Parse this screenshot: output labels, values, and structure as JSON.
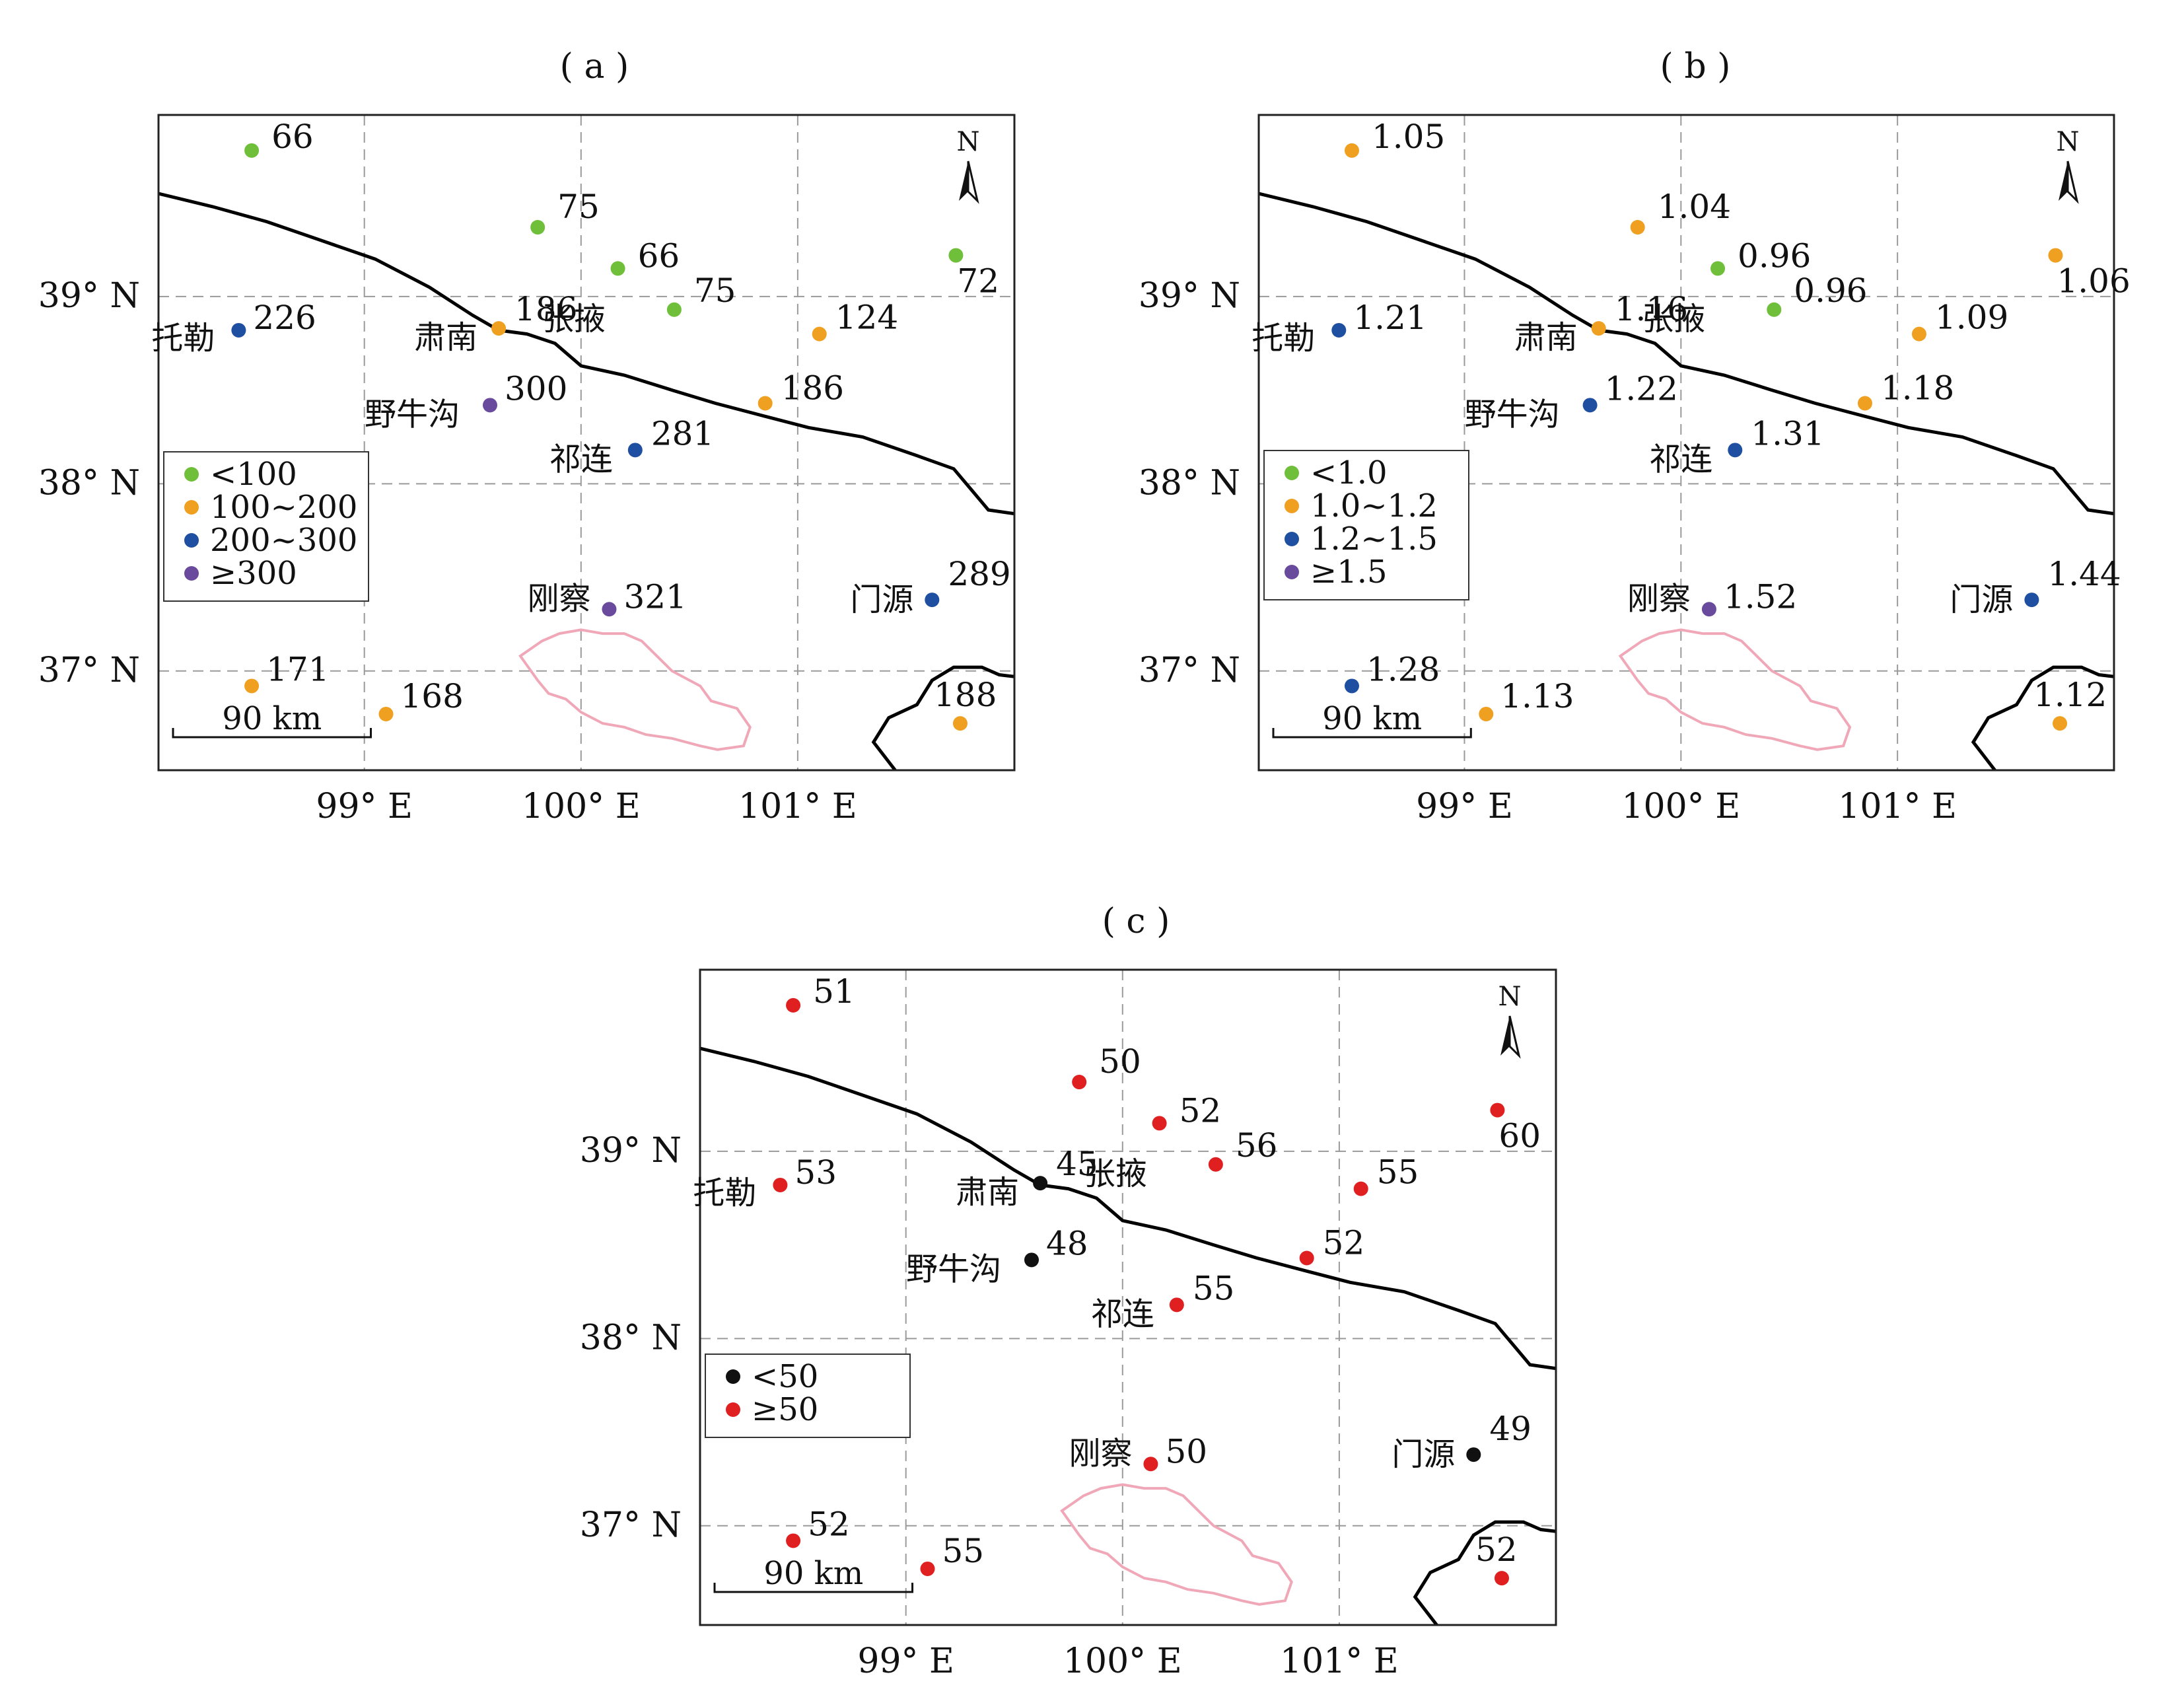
{
  "figure": {
    "lat_axis": {
      "ticks": [
        "39° N",
        "38° N",
        "37° N"
      ],
      "values": [
        39,
        38,
        37
      ]
    },
    "lon_axis": {
      "ticks": [
        "99° E",
        "100° E",
        "101° E"
      ],
      "values": [
        99,
        100,
        101
      ]
    },
    "north_label": "N",
    "scale_label": "90 km",
    "colors": {
      "green": "#6fbf3a",
      "orange": "#f0a020",
      "blue": "#1f4fa0",
      "purple": "#6a4a9c",
      "black": "#111111",
      "red": "#e02020",
      "border": "#000000",
      "lake": "#f0a8b8",
      "grid": "#9a9a9a"
    }
  },
  "panels": [
    {
      "label": "( a )",
      "legend": [
        {
          "label": "<100",
          "color": "green"
        },
        {
          "label": "100~200",
          "color": "orange"
        },
        {
          "label": "200~300",
          "color": "blue"
        },
        {
          "label": "≥300",
          "color": "purple"
        }
      ],
      "stations": [
        {
          "name": "",
          "value": "66",
          "lon": 98.48,
          "lat": 39.78,
          "color": "green"
        },
        {
          "name": "",
          "value": "75",
          "lon": 99.8,
          "lat": 39.37,
          "color": "green"
        },
        {
          "name": "",
          "value": "66",
          "lon": 100.17,
          "lat": 39.15,
          "color": "green"
        },
        {
          "name": "",
          "value": "72",
          "lon": 101.73,
          "lat": 39.22,
          "color": "green"
        },
        {
          "name": "张掖",
          "value": "75",
          "lon": 100.43,
          "lat": 38.93,
          "color": "green"
        },
        {
          "name": "托勒",
          "value": "226",
          "lon": 98.42,
          "lat": 38.82,
          "color": "blue"
        },
        {
          "name": "肃南",
          "value": "186",
          "lon": 99.62,
          "lat": 38.83,
          "color": "orange"
        },
        {
          "name": "",
          "value": "124",
          "lon": 101.1,
          "lat": 38.8,
          "color": "orange"
        },
        {
          "name": "",
          "value": "186",
          "lon": 100.85,
          "lat": 38.43,
          "color": "orange"
        },
        {
          "name": "野牛沟",
          "value": "300",
          "lon": 99.58,
          "lat": 38.42,
          "color": "purple"
        },
        {
          "name": "祁连",
          "value": "281",
          "lon": 100.25,
          "lat": 38.18,
          "color": "blue"
        },
        {
          "name": "刚察",
          "value": "321",
          "lon": 100.13,
          "lat": 37.33,
          "color": "purple"
        },
        {
          "name": "门源",
          "value": "289",
          "lon": 101.62,
          "lat": 37.38,
          "color": "blue"
        },
        {
          "name": "",
          "value": "171",
          "lon": 98.48,
          "lat": 36.92,
          "color": "orange"
        },
        {
          "name": "",
          "value": "168",
          "lon": 99.1,
          "lat": 36.77,
          "color": "orange"
        },
        {
          "name": "",
          "value": "188",
          "lon": 101.75,
          "lat": 36.72,
          "color": "orange"
        }
      ]
    },
    {
      "label": "( b )",
      "legend": [
        {
          "label": "<1.0",
          "color": "green"
        },
        {
          "label": "1.0~1.2",
          "color": "orange"
        },
        {
          "label": "1.2~1.5",
          "color": "blue"
        },
        {
          "label": "≥1.5",
          "color": "purple"
        }
      ],
      "stations": [
        {
          "name": "",
          "value": "1.05",
          "lon": 98.48,
          "lat": 39.78,
          "color": "orange"
        },
        {
          "name": "",
          "value": "1.04",
          "lon": 99.8,
          "lat": 39.37,
          "color": "orange"
        },
        {
          "name": "",
          "value": "0.96",
          "lon": 100.17,
          "lat": 39.15,
          "color": "green"
        },
        {
          "name": "",
          "value": "1.06",
          "lon": 101.73,
          "lat": 39.22,
          "color": "orange"
        },
        {
          "name": "张掖",
          "value": "0.96",
          "lon": 100.43,
          "lat": 38.93,
          "color": "green"
        },
        {
          "name": "托勒",
          "value": "1.21",
          "lon": 98.42,
          "lat": 38.82,
          "color": "blue"
        },
        {
          "name": "肃南",
          "value": "1.16",
          "lon": 99.62,
          "lat": 38.83,
          "color": "orange"
        },
        {
          "name": "",
          "value": "1.09",
          "lon": 101.1,
          "lat": 38.8,
          "color": "orange"
        },
        {
          "name": "",
          "value": "1.18",
          "lon": 100.85,
          "lat": 38.43,
          "color": "orange"
        },
        {
          "name": "野牛沟",
          "value": "1.22",
          "lon": 99.58,
          "lat": 38.42,
          "color": "blue"
        },
        {
          "name": "祁连",
          "value": "1.31",
          "lon": 100.25,
          "lat": 38.18,
          "color": "blue"
        },
        {
          "name": "刚察",
          "value": "1.52",
          "lon": 100.13,
          "lat": 37.33,
          "color": "purple"
        },
        {
          "name": "门源",
          "value": "1.44",
          "lon": 101.62,
          "lat": 37.38,
          "color": "blue"
        },
        {
          "name": "",
          "value": "1.28",
          "lon": 98.48,
          "lat": 36.92,
          "color": "blue"
        },
        {
          "name": "",
          "value": "1.13",
          "lon": 99.1,
          "lat": 36.77,
          "color": "orange"
        },
        {
          "name": "",
          "value": "1.12",
          "lon": 101.75,
          "lat": 36.72,
          "color": "orange"
        }
      ]
    },
    {
      "label": "( c )",
      "legend": [
        {
          "label": "<50",
          "color": "black"
        },
        {
          "label": "≥50",
          "color": "red"
        }
      ],
      "stations": [
        {
          "name": "",
          "value": "51",
          "lon": 98.48,
          "lat": 39.78,
          "color": "red"
        },
        {
          "name": "",
          "value": "50",
          "lon": 99.8,
          "lat": 39.37,
          "color": "red"
        },
        {
          "name": "",
          "value": "52",
          "lon": 100.17,
          "lat": 39.15,
          "color": "red"
        },
        {
          "name": "",
          "value": "60",
          "lon": 101.73,
          "lat": 39.22,
          "color": "red"
        },
        {
          "name": "张掖",
          "value": "56",
          "lon": 100.43,
          "lat": 38.93,
          "color": "red"
        },
        {
          "name": "托勒",
          "value": "53",
          "lon": 98.42,
          "lat": 38.82,
          "color": "red"
        },
        {
          "name": "肃南",
          "value": "45",
          "lon": 99.62,
          "lat": 38.83,
          "color": "black"
        },
        {
          "name": "",
          "value": "55",
          "lon": 101.1,
          "lat": 38.8,
          "color": "red"
        },
        {
          "name": "",
          "value": "52",
          "lon": 100.85,
          "lat": 38.43,
          "color": "red"
        },
        {
          "name": "野牛沟",
          "value": "48",
          "lon": 99.58,
          "lat": 38.42,
          "color": "black"
        },
        {
          "name": "祁连",
          "value": "55",
          "lon": 100.25,
          "lat": 38.18,
          "color": "red"
        },
        {
          "name": "刚察",
          "value": "50",
          "lon": 100.13,
          "lat": 37.33,
          "color": "red"
        },
        {
          "name": "门源",
          "value": "49",
          "lon": 101.62,
          "lat": 37.38,
          "color": "black"
        },
        {
          "name": "",
          "value": "52",
          "lon": 98.48,
          "lat": 36.92,
          "color": "red"
        },
        {
          "name": "",
          "value": "55",
          "lon": 99.1,
          "lat": 36.77,
          "color": "red"
        },
        {
          "name": "",
          "value": "52",
          "lon": 101.75,
          "lat": 36.72,
          "color": "red"
        }
      ]
    }
  ]
}
